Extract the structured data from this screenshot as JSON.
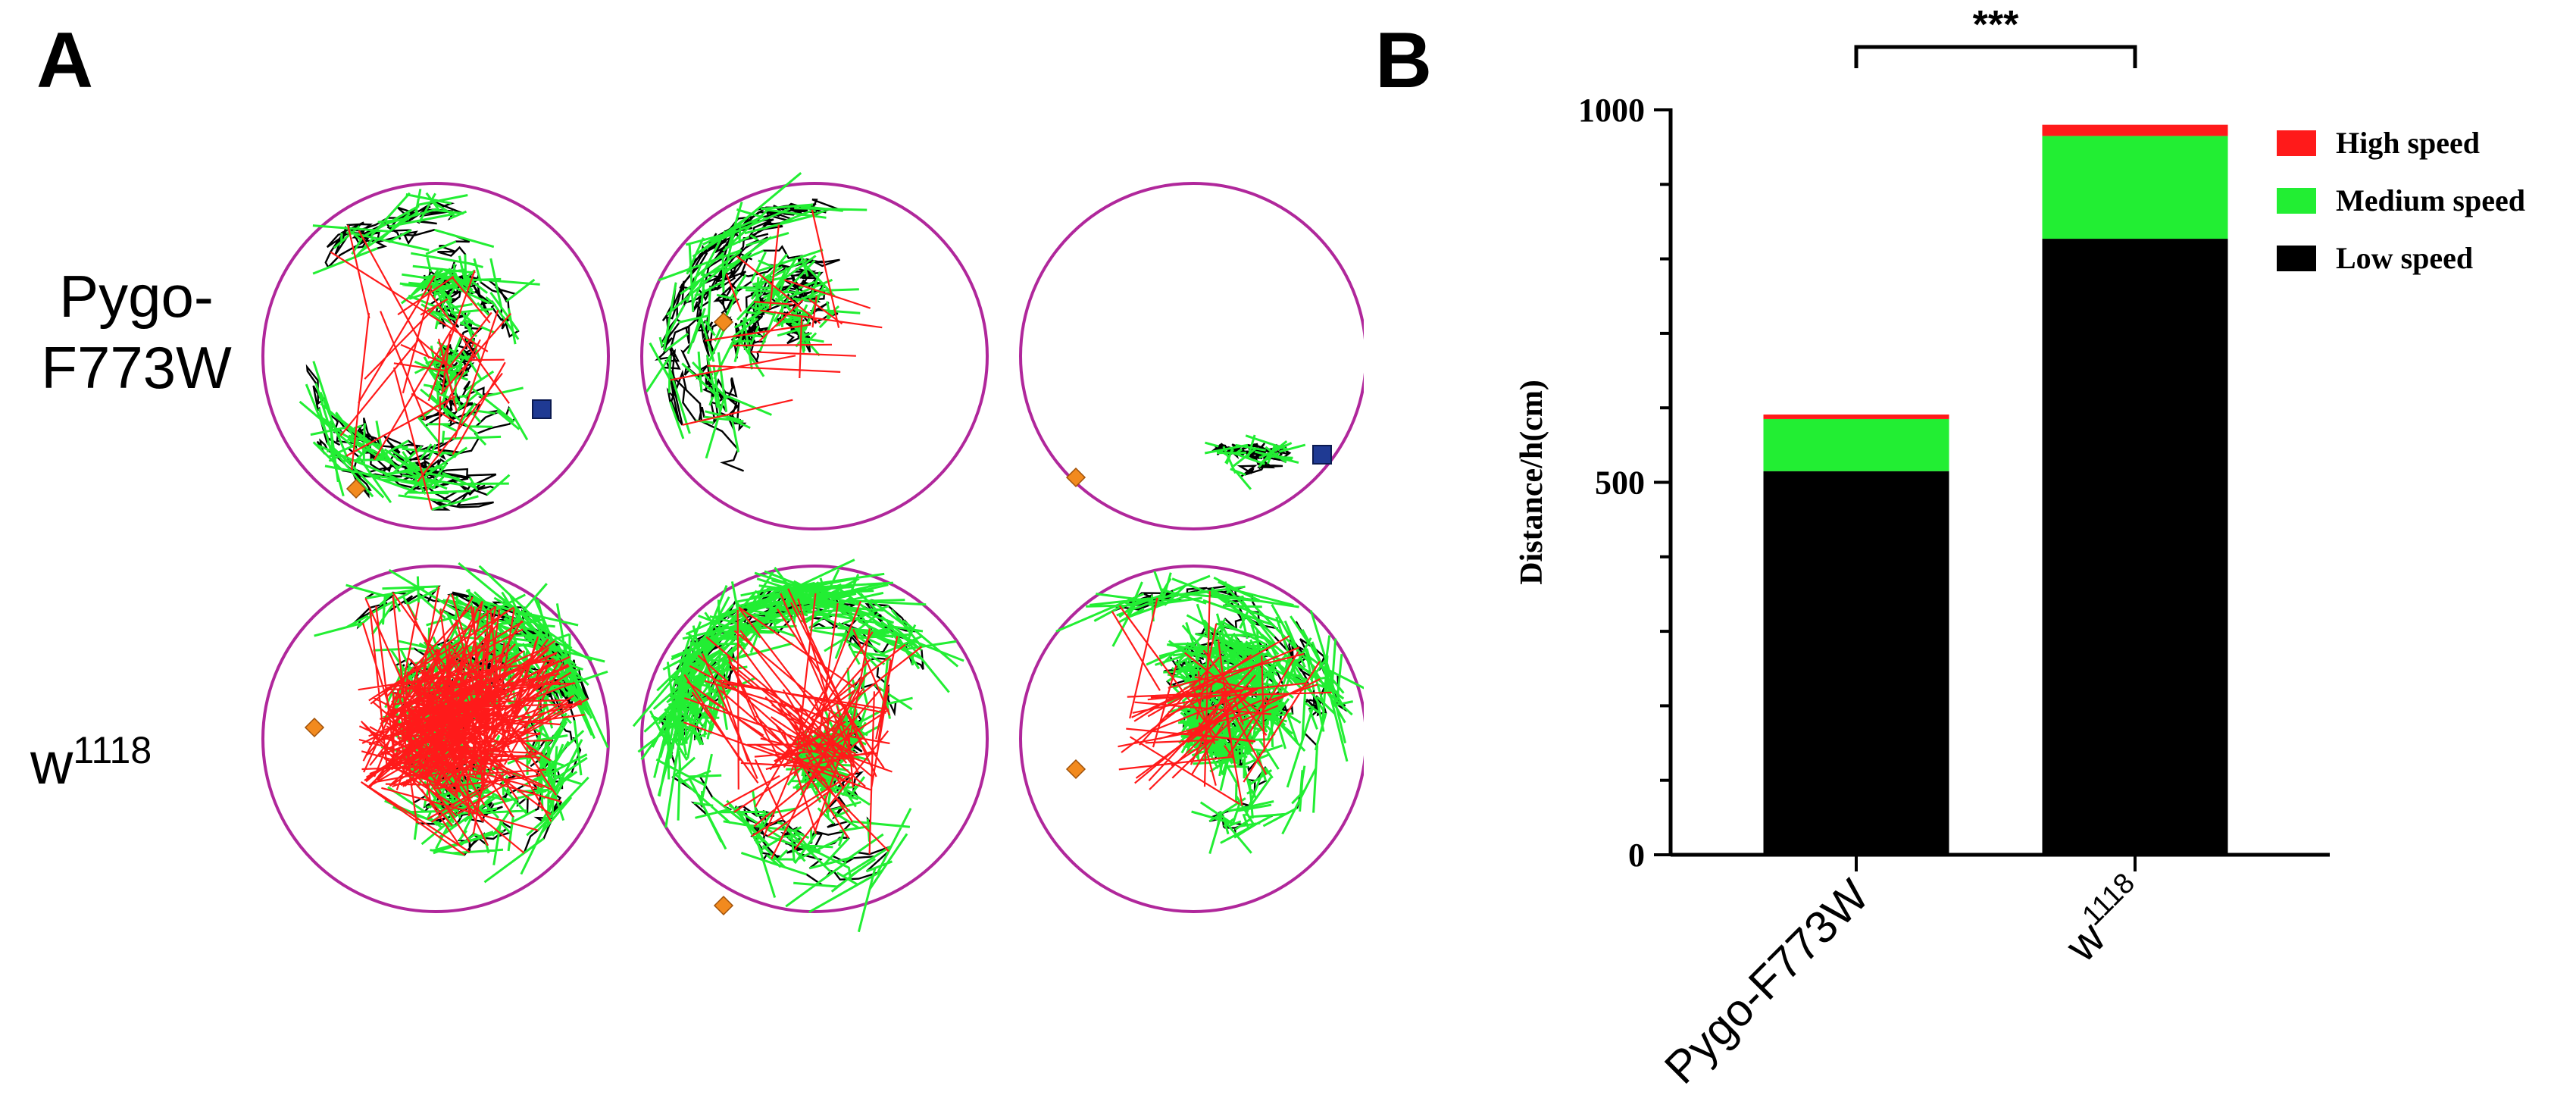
{
  "panels": {
    "a_letter": "A",
    "b_letter": "B"
  },
  "panel_a": {
    "rows": [
      {
        "label_line1": "Pygo-",
        "label_line2": "F773W",
        "sup": ""
      },
      {
        "label_base": "w",
        "label_sup": "1118"
      }
    ],
    "arena_count_per_row": 3
  },
  "colors": {
    "high": "#ff1a1a",
    "medium": "#22ee33",
    "low": "#000000",
    "arena": "#b0279b",
    "start_marker": "#f28a1e",
    "end_marker": "#1f3a93"
  },
  "chart_data": {
    "type": "bar",
    "stacked": true,
    "categories": [
      {
        "base": "Pygo-F773W",
        "sup": ""
      },
      {
        "base": "w",
        "sup": "1118"
      }
    ],
    "series": [
      {
        "name": "Low speed",
        "color": "#000000",
        "values": [
          515,
          827
        ]
      },
      {
        "name": "Medium speed",
        "color": "#22ee33",
        "values": [
          70,
          138
        ]
      },
      {
        "name": "High speed",
        "color": "#ff1a1a",
        "values": [
          6,
          15
        ]
      }
    ],
    "ylabel": "Distance/h(cm)",
    "ylim": [
      0,
      1000
    ],
    "yticks": [
      0,
      500,
      1000
    ],
    "legend_order": [
      "High speed",
      "Medium speed",
      "Low speed"
    ],
    "legend_placement": "top-right",
    "significance": "***"
  }
}
